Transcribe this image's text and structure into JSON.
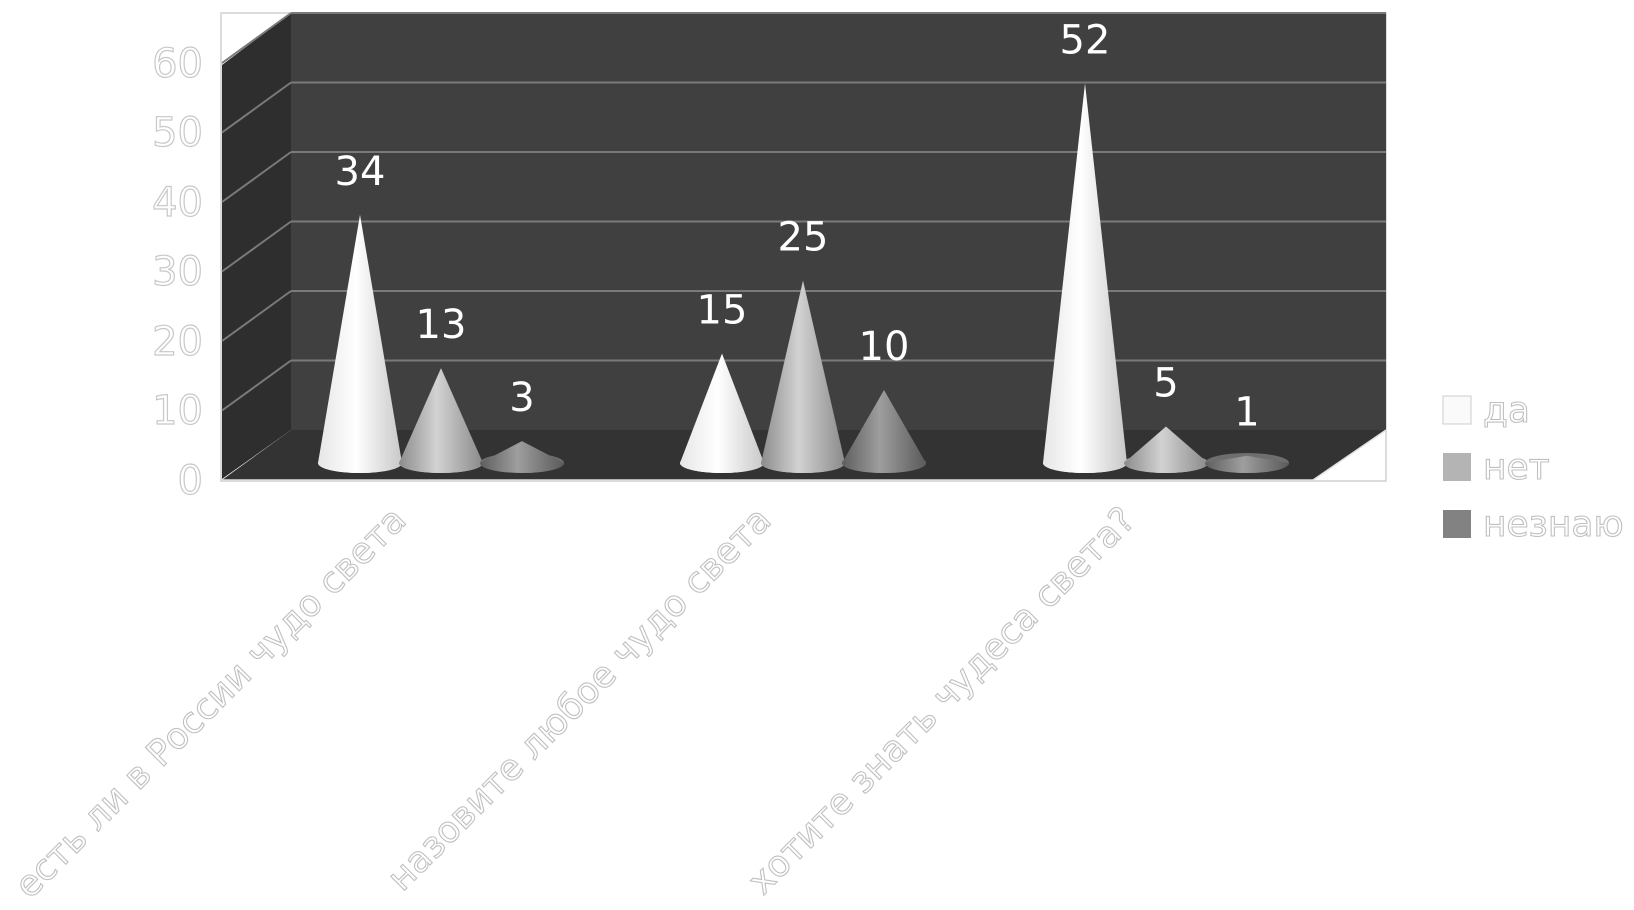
{
  "chart_data": {
    "type": "bar",
    "bar_shape": "3d-cone",
    "categories": [
      "есть ли в России чудо света",
      "назовите любое чудо света",
      "хотите знать чудеса света?"
    ],
    "series": [
      {
        "name": "да",
        "values": [
          34,
          15,
          52
        ]
      },
      {
        "name": "нет",
        "values": [
          13,
          25,
          5
        ]
      },
      {
        "name": "незнаю",
        "values": [
          3,
          10,
          1
        ]
      }
    ],
    "yticks": [
      "0",
      "10",
      "20",
      "30",
      "40",
      "50",
      "60"
    ],
    "ylim": [
      0,
      60
    ],
    "grid": true,
    "data_labels": true,
    "legend_position": "right",
    "colors": {
      "series": [
        "#fafafa",
        "#b4b4b4",
        "#828282"
      ],
      "wall": "#404040",
      "side_wall": "#2e2e2e",
      "floor": "#333333",
      "grid": "#7a7a7a"
    }
  }
}
